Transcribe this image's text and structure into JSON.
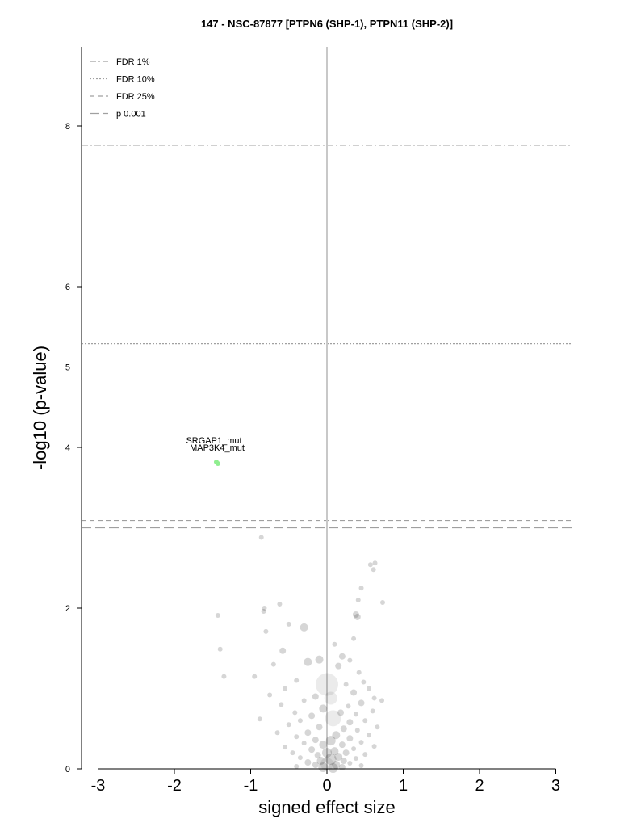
{
  "chart_data": {
    "type": "scatter",
    "title": "147 - NSC-87877 [PTPN6 (SHP-1), PTPN11 (SHP-2)]",
    "xlabel": "signed effect size",
    "ylabel": "-log10 (p-value)",
    "xlim": [
      -3.2,
      3.2
    ],
    "ylim": [
      0,
      9
    ],
    "x_ticks": [
      -3,
      -2,
      -1,
      0,
      1,
      2,
      3
    ],
    "x_tick_labels": [
      "-3",
      "-2",
      "-1",
      "0",
      "1",
      "2",
      "3"
    ],
    "y_ticks": [
      0,
      2,
      4,
      5,
      6,
      8
    ],
    "y_tick_labels": [
      "0",
      "2",
      "4",
      "5",
      "6",
      "8"
    ],
    "legend_position": "top-left",
    "grid": false,
    "thresholds": [
      {
        "name": "FDR 1%",
        "y": 7.76,
        "style": "dashdot",
        "color": "#a0a0a0"
      },
      {
        "name": "FDR 10%",
        "y": 5.29,
        "style": "dotted",
        "color": "#a0a0a0"
      },
      {
        "name": "FDR 25%",
        "y": 3.09,
        "style": "dashed",
        "color": "#a0a0a0"
      },
      {
        "name": "p 0.001",
        "y": 3.0,
        "style": "longdash",
        "color": "#a0a0a0"
      }
    ],
    "zero_line_color": "#c8c8c8",
    "background_point_color": "#000000",
    "highlight_color": "#90ee90",
    "highlighted_points": [
      {
        "label": "SRGAP1_mut",
        "x": -1.45,
        "y": 3.92
      },
      {
        "label": "MAP3K4_mut",
        "x": -1.43,
        "y": 3.9
      }
    ],
    "points": [
      {
        "x": -0.86,
        "y": 2.88,
        "r": 3
      },
      {
        "x": 0.57,
        "y": 2.54,
        "r": 3
      },
      {
        "x": 0.63,
        "y": 2.56,
        "r": 3
      },
      {
        "x": 0.61,
        "y": 2.48,
        "r": 3
      },
      {
        "x": 0.45,
        "y": 2.25,
        "r": 3
      },
      {
        "x": 0.41,
        "y": 2.1,
        "r": 3
      },
      {
        "x": 0.73,
        "y": 2.07,
        "r": 3
      },
      {
        "x": -0.62,
        "y": 2.05,
        "r": 3
      },
      {
        "x": -0.82,
        "y": 2.0,
        "r": 3
      },
      {
        "x": -0.83,
        "y": 1.96,
        "r": 3
      },
      {
        "x": 0.38,
        "y": 1.92,
        "r": 4
      },
      {
        "x": 0.4,
        "y": 1.89,
        "r": 4
      },
      {
        "x": -1.43,
        "y": 1.91,
        "r": 3
      },
      {
        "x": -0.5,
        "y": 1.8,
        "r": 3
      },
      {
        "x": -0.3,
        "y": 1.76,
        "r": 5
      },
      {
        "x": -0.8,
        "y": 1.71,
        "r": 3
      },
      {
        "x": 0.35,
        "y": 1.62,
        "r": 3
      },
      {
        "x": 0.1,
        "y": 1.55,
        "r": 3
      },
      {
        "x": -0.58,
        "y": 1.47,
        "r": 4
      },
      {
        "x": -1.4,
        "y": 1.49,
        "r": 3
      },
      {
        "x": 0.2,
        "y": 1.4,
        "r": 4
      },
      {
        "x": -0.1,
        "y": 1.36,
        "r": 5
      },
      {
        "x": 0.3,
        "y": 1.35,
        "r": 3
      },
      {
        "x": -0.7,
        "y": 1.3,
        "r": 3
      },
      {
        "x": 0.15,
        "y": 1.28,
        "r": 4
      },
      {
        "x": -0.25,
        "y": 1.33,
        "r": 5
      },
      {
        "x": 0.42,
        "y": 1.2,
        "r": 3
      },
      {
        "x": -1.35,
        "y": 1.15,
        "r": 3
      },
      {
        "x": -0.95,
        "y": 1.15,
        "r": 3
      },
      {
        "x": -0.4,
        "y": 1.1,
        "r": 3
      },
      {
        "x": 0.48,
        "y": 1.08,
        "r": 3
      },
      {
        "x": 0.25,
        "y": 1.05,
        "r": 3
      },
      {
        "x": 0.0,
        "y": 1.05,
        "r": 14
      },
      {
        "x": -0.55,
        "y": 1.0,
        "r": 3
      },
      {
        "x": 0.55,
        "y": 1.0,
        "r": 3
      },
      {
        "x": 0.35,
        "y": 0.95,
        "r": 4
      },
      {
        "x": -0.75,
        "y": 0.92,
        "r": 3
      },
      {
        "x": -0.15,
        "y": 0.9,
        "r": 4
      },
      {
        "x": 0.62,
        "y": 0.88,
        "r": 3
      },
      {
        "x": 0.05,
        "y": 0.88,
        "r": 8
      },
      {
        "x": -0.3,
        "y": 0.85,
        "r": 3
      },
      {
        "x": 0.45,
        "y": 0.82,
        "r": 4
      },
      {
        "x": 0.72,
        "y": 0.85,
        "r": 3
      },
      {
        "x": -0.6,
        "y": 0.8,
        "r": 3
      },
      {
        "x": 0.28,
        "y": 0.78,
        "r": 3
      },
      {
        "x": -0.05,
        "y": 0.75,
        "r": 5
      },
      {
        "x": 0.6,
        "y": 0.72,
        "r": 3
      },
      {
        "x": -0.42,
        "y": 0.7,
        "r": 3
      },
      {
        "x": 0.18,
        "y": 0.7,
        "r": 4
      },
      {
        "x": 0.38,
        "y": 0.68,
        "r": 3
      },
      {
        "x": -0.2,
        "y": 0.66,
        "r": 4
      },
      {
        "x": -0.88,
        "y": 0.62,
        "r": 3
      },
      {
        "x": 0.08,
        "y": 0.63,
        "r": 10
      },
      {
        "x": -0.35,
        "y": 0.6,
        "r": 3
      },
      {
        "x": 0.5,
        "y": 0.6,
        "r": 3
      },
      {
        "x": 0.3,
        "y": 0.58,
        "r": 4
      },
      {
        "x": -0.5,
        "y": 0.55,
        "r": 3
      },
      {
        "x": 0.66,
        "y": 0.52,
        "r": 3
      },
      {
        "x": -0.1,
        "y": 0.52,
        "r": 4
      },
      {
        "x": 0.22,
        "y": 0.5,
        "r": 4
      },
      {
        "x": 0.4,
        "y": 0.48,
        "r": 3
      },
      {
        "x": -0.25,
        "y": 0.45,
        "r": 4
      },
      {
        "x": -0.65,
        "y": 0.45,
        "r": 3
      },
      {
        "x": 0.12,
        "y": 0.42,
        "r": 5
      },
      {
        "x": 0.55,
        "y": 0.42,
        "r": 3
      },
      {
        "x": -0.4,
        "y": 0.4,
        "r": 3
      },
      {
        "x": 0.3,
        "y": 0.38,
        "r": 4
      },
      {
        "x": -0.15,
        "y": 0.36,
        "r": 4
      },
      {
        "x": 0.05,
        "y": 0.35,
        "r": 6
      },
      {
        "x": 0.45,
        "y": 0.33,
        "r": 3
      },
      {
        "x": -0.3,
        "y": 0.32,
        "r": 3
      },
      {
        "x": 0.2,
        "y": 0.3,
        "r": 4
      },
      {
        "x": -0.05,
        "y": 0.3,
        "r": 5
      },
      {
        "x": 0.62,
        "y": 0.28,
        "r": 3
      },
      {
        "x": -0.55,
        "y": 0.27,
        "r": 3
      },
      {
        "x": 0.35,
        "y": 0.25,
        "r": 3
      },
      {
        "x": -0.2,
        "y": 0.24,
        "r": 4
      },
      {
        "x": 0.1,
        "y": 0.22,
        "r": 5
      },
      {
        "x": -0.45,
        "y": 0.2,
        "r": 3
      },
      {
        "x": 0.25,
        "y": 0.2,
        "r": 4
      },
      {
        "x": 0.0,
        "y": 0.2,
        "r": 6
      },
      {
        "x": 0.5,
        "y": 0.18,
        "r": 3
      },
      {
        "x": -0.12,
        "y": 0.17,
        "r": 4
      },
      {
        "x": 0.15,
        "y": 0.15,
        "r": 5
      },
      {
        "x": -0.35,
        "y": 0.14,
        "r": 3
      },
      {
        "x": 0.38,
        "y": 0.13,
        "r": 3
      },
      {
        "x": 0.05,
        "y": 0.12,
        "r": 7
      },
      {
        "x": -0.08,
        "y": 0.1,
        "r": 5
      },
      {
        "x": 0.22,
        "y": 0.1,
        "r": 4
      },
      {
        "x": -0.25,
        "y": 0.08,
        "r": 4
      },
      {
        "x": 0.3,
        "y": 0.07,
        "r": 3
      },
      {
        "x": 0.0,
        "y": 0.06,
        "r": 8
      },
      {
        "x": -0.15,
        "y": 0.05,
        "r": 4
      },
      {
        "x": 0.12,
        "y": 0.05,
        "r": 5
      },
      {
        "x": 0.45,
        "y": 0.04,
        "r": 3
      },
      {
        "x": -0.4,
        "y": 0.03,
        "r": 3
      },
      {
        "x": 0.2,
        "y": 0.02,
        "r": 4
      },
      {
        "x": -0.05,
        "y": 0.02,
        "r": 6
      },
      {
        "x": 0.08,
        "y": 0.01,
        "r": 6
      }
    ]
  }
}
